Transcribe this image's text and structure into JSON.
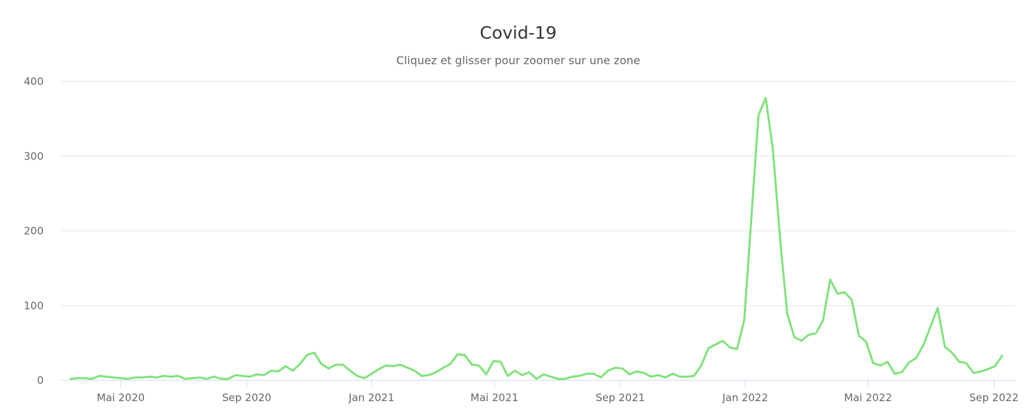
{
  "chart_data": {
    "type": "line",
    "title": "Covid-19",
    "subtitle": "Cliquez et glisser pour zoomer sur une zone",
    "xlabel": "",
    "ylabel": "",
    "ylim": [
      0,
      400
    ],
    "yticks": [
      0,
      100,
      200,
      300,
      400
    ],
    "xticks": [
      {
        "date": "2020-05-01",
        "label": "Mai 2020"
      },
      {
        "date": "2020-09-01",
        "label": "Sep 2020"
      },
      {
        "date": "2021-01-01",
        "label": "Jan 2021"
      },
      {
        "date": "2021-05-01",
        "label": "Mai 2021"
      },
      {
        "date": "2021-09-01",
        "label": "Sep 2021"
      },
      {
        "date": "2022-01-01",
        "label": "Jan 2022"
      },
      {
        "date": "2022-05-01",
        "label": "Mai 2022"
      },
      {
        "date": "2022-09-01",
        "label": "Sep 2022"
      }
    ],
    "grid": true,
    "legend": "none",
    "series_color": "#80e27a",
    "x": [
      "2020-03-13",
      "2020-03-20",
      "2020-03-27",
      "2020-04-03",
      "2020-04-10",
      "2020-04-17",
      "2020-04-24",
      "2020-05-01",
      "2020-05-08",
      "2020-05-15",
      "2020-05-22",
      "2020-05-29",
      "2020-06-05",
      "2020-06-12",
      "2020-06-19",
      "2020-06-26",
      "2020-07-03",
      "2020-07-10",
      "2020-07-17",
      "2020-07-24",
      "2020-07-31",
      "2020-08-07",
      "2020-08-14",
      "2020-08-21",
      "2020-08-28",
      "2020-09-04",
      "2020-09-11",
      "2020-09-18",
      "2020-09-25",
      "2020-10-02",
      "2020-10-09",
      "2020-10-16",
      "2020-10-23",
      "2020-10-30",
      "2020-11-06",
      "2020-11-13",
      "2020-11-20",
      "2020-11-27",
      "2020-12-04",
      "2020-12-11",
      "2020-12-18",
      "2020-12-25",
      "2021-01-01",
      "2021-01-08",
      "2021-01-15",
      "2021-01-22",
      "2021-01-29",
      "2021-02-05",
      "2021-02-12",
      "2021-02-19",
      "2021-02-26",
      "2021-03-05",
      "2021-03-12",
      "2021-03-19",
      "2021-03-26",
      "2021-04-02",
      "2021-04-09",
      "2021-04-16",
      "2021-04-23",
      "2021-04-30",
      "2021-05-07",
      "2021-05-14",
      "2021-05-21",
      "2021-05-28",
      "2021-06-04",
      "2021-06-11",
      "2021-06-18",
      "2021-06-25",
      "2021-07-02",
      "2021-07-09",
      "2021-07-16",
      "2021-07-23",
      "2021-07-30",
      "2021-08-06",
      "2021-08-13",
      "2021-08-20",
      "2021-08-27",
      "2021-09-03",
      "2021-09-10",
      "2021-09-17",
      "2021-09-24",
      "2021-10-01",
      "2021-10-08",
      "2021-10-15",
      "2021-10-22",
      "2021-10-29",
      "2021-11-05",
      "2021-11-12",
      "2021-11-19",
      "2021-11-26",
      "2021-12-03",
      "2021-12-10",
      "2021-12-17",
      "2021-12-24",
      "2021-12-31",
      "2022-01-07",
      "2022-01-14",
      "2022-01-21",
      "2022-01-28",
      "2022-02-04",
      "2022-02-11",
      "2022-02-18",
      "2022-02-25",
      "2022-03-04",
      "2022-03-11",
      "2022-03-18",
      "2022-03-25",
      "2022-04-01",
      "2022-04-08",
      "2022-04-15",
      "2022-04-22",
      "2022-04-29",
      "2022-05-06",
      "2022-05-13",
      "2022-05-20",
      "2022-05-27",
      "2022-06-03",
      "2022-06-10",
      "2022-06-17",
      "2022-06-24",
      "2022-07-01",
      "2022-07-08",
      "2022-07-15",
      "2022-07-22",
      "2022-07-29",
      "2022-08-05",
      "2022-08-12",
      "2022-08-19",
      "2022-08-26",
      "2022-09-02",
      "2022-09-09"
    ],
    "values": [
      2,
      3,
      3,
      2,
      6,
      5,
      4,
      3,
      2,
      4,
      4,
      5,
      4,
      6,
      5,
      6,
      2,
      3,
      4,
      2,
      5,
      2,
      2,
      7,
      6,
      5,
      8,
      7,
      13,
      12,
      19,
      13,
      22,
      34,
      37,
      22,
      16,
      21,
      21,
      13,
      6,
      3,
      9,
      15,
      20,
      19,
      21,
      17,
      13,
      6,
      7,
      11,
      17,
      22,
      35,
      34,
      21,
      20,
      8,
      26,
      25,
      6,
      13,
      7,
      11,
      2,
      8,
      5,
      2,
      2,
      5,
      6,
      9,
      9,
      4,
      13,
      17,
      16,
      8,
      12,
      10,
      5,
      7,
      4,
      9,
      5,
      5,
      6,
      20,
      43,
      48,
      53,
      44,
      42,
      80,
      218,
      355,
      378,
      310,
      190,
      89,
      58,
      53,
      61,
      63,
      80,
      135,
      116,
      118,
      108,
      60,
      52,
      23,
      20,
      25,
      9,
      11,
      24,
      30,
      47,
      72,
      97,
      45,
      37,
      25,
      23,
      10,
      12,
      15,
      19,
      33
    ]
  }
}
